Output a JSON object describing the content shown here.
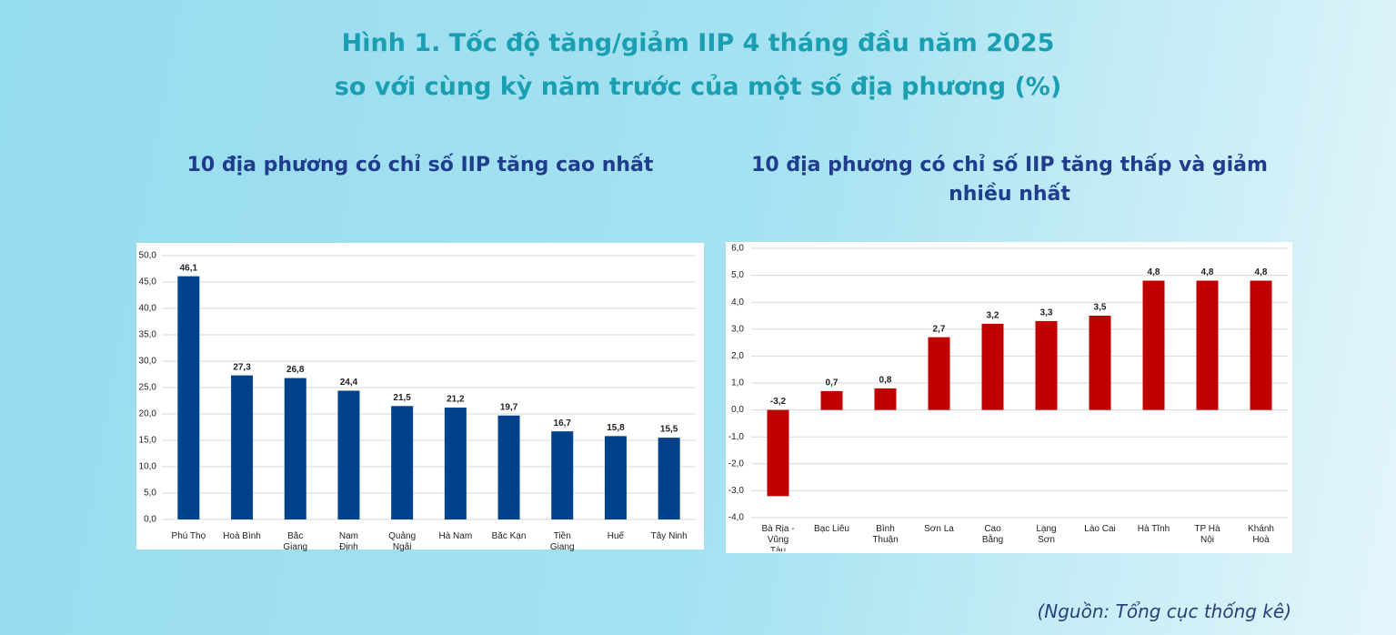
{
  "title_lines": [
    "Hình 1. Tốc độ tăng/giảm IIP 4 tháng đầu năm 2025",
    "so với cùng kỳ năm trước của một số địa phương (%)"
  ],
  "source": "(Nguồn: Tổng cục thống kê)",
  "chart_data": [
    {
      "type": "bar",
      "title": "10 địa phương có chỉ số IIP tăng cao nhất",
      "color": "#00418c",
      "grid": true,
      "categories": [
        "Phú Thọ",
        "Hoà Bình",
        "Bắc Giang",
        "Nam Định",
        "Quảng Ngãi",
        "Hà Nam",
        "Bắc Kạn",
        "Tiền Giang",
        "Huế",
        "Tây Ninh"
      ],
      "values": [
        46.1,
        27.3,
        26.8,
        24.4,
        21.5,
        21.2,
        19.7,
        16.7,
        15.8,
        15.5
      ],
      "value_labels": [
        "46,1",
        "27,3",
        "26,8",
        "24,4",
        "21,5",
        "21,2",
        "19,7",
        "16,7",
        "15,8",
        "15,5"
      ],
      "ylim": [
        0,
        50
      ],
      "yticks": [
        {
          "value": 0,
          "label": "0,0"
        },
        {
          "value": 5,
          "label": "5,0"
        },
        {
          "value": 10,
          "label": "10,0"
        },
        {
          "value": 15,
          "label": "15,0"
        },
        {
          "value": 20,
          "label": "20,0"
        },
        {
          "value": 25,
          "label": "25,0"
        },
        {
          "value": 30,
          "label": "30,0"
        },
        {
          "value": 35,
          "label": "35,0"
        },
        {
          "value": 40,
          "label": "40,0"
        },
        {
          "value": 45,
          "label": "45,0"
        },
        {
          "value": 50,
          "label": "50,0"
        }
      ]
    },
    {
      "type": "bar",
      "title": "10 địa phương có chỉ số IIP tăng thấp và giảm nhiều nhất",
      "color": "#c00000",
      "grid": true,
      "categories": [
        "Bà Rịa - Vũng Tàu",
        "Bạc Liêu",
        "Bình Thuận",
        "Sơn La",
        "Cao Bằng",
        "Lạng Sơn",
        "Lào Cai",
        "Hà Tĩnh",
        "TP Hà Nội",
        "Khánh Hoà"
      ],
      "values": [
        -3.2,
        0.7,
        0.8,
        2.7,
        3.2,
        3.3,
        3.5,
        4.8,
        4.8,
        4.8
      ],
      "value_labels": [
        "-3,2",
        "0,7",
        "0,8",
        "2,7",
        "3,2",
        "3,3",
        "3,5",
        "4,8",
        "4,8",
        "4,8"
      ],
      "ylim": [
        -4,
        6
      ],
      "yticks": [
        {
          "value": -4,
          "label": "-4,0"
        },
        {
          "value": -3,
          "label": "-3,0"
        },
        {
          "value": -2,
          "label": "-2,0"
        },
        {
          "value": -1,
          "label": "-1,0"
        },
        {
          "value": 0,
          "label": "0,0"
        },
        {
          "value": 1,
          "label": "1,0"
        },
        {
          "value": 2,
          "label": "2,0"
        },
        {
          "value": 3,
          "label": "3,0"
        },
        {
          "value": 4,
          "label": "4,0"
        },
        {
          "value": 5,
          "label": "5,0"
        },
        {
          "value": 6,
          "label": "6,0"
        }
      ]
    }
  ]
}
